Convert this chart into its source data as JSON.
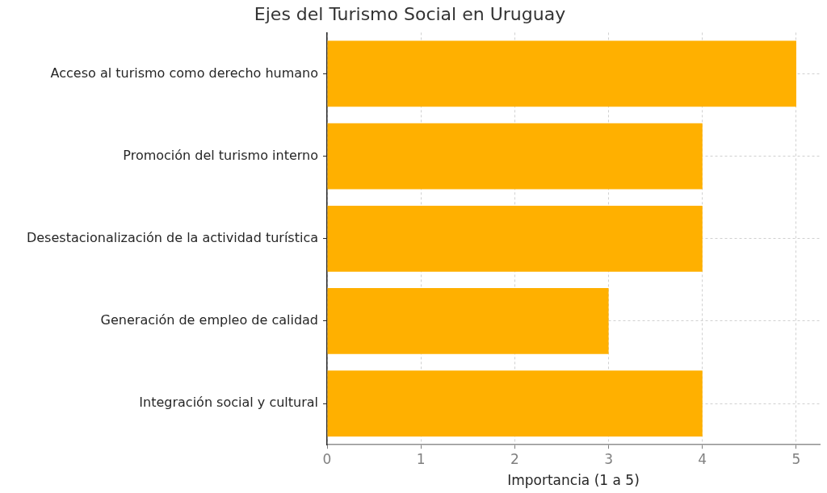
{
  "chart_data": {
    "type": "bar",
    "orientation": "horizontal",
    "title": "Ejes del Turismo Social en Uruguay",
    "xlabel": "Importancia (1 a 5)",
    "categories": [
      "Acceso al turismo como derecho humano",
      "Promoción del turismo interno",
      "Desestacionalización de la actividad turística",
      "Generación de empleo de calidad",
      "Integración social y cultural"
    ],
    "values": [
      5,
      4,
      4,
      3,
      4
    ],
    "color": "#ffb000",
    "xlim": [
      0,
      5.25
    ],
    "xticks": [
      0,
      1,
      2,
      3,
      4,
      5
    ],
    "grid": true
  }
}
